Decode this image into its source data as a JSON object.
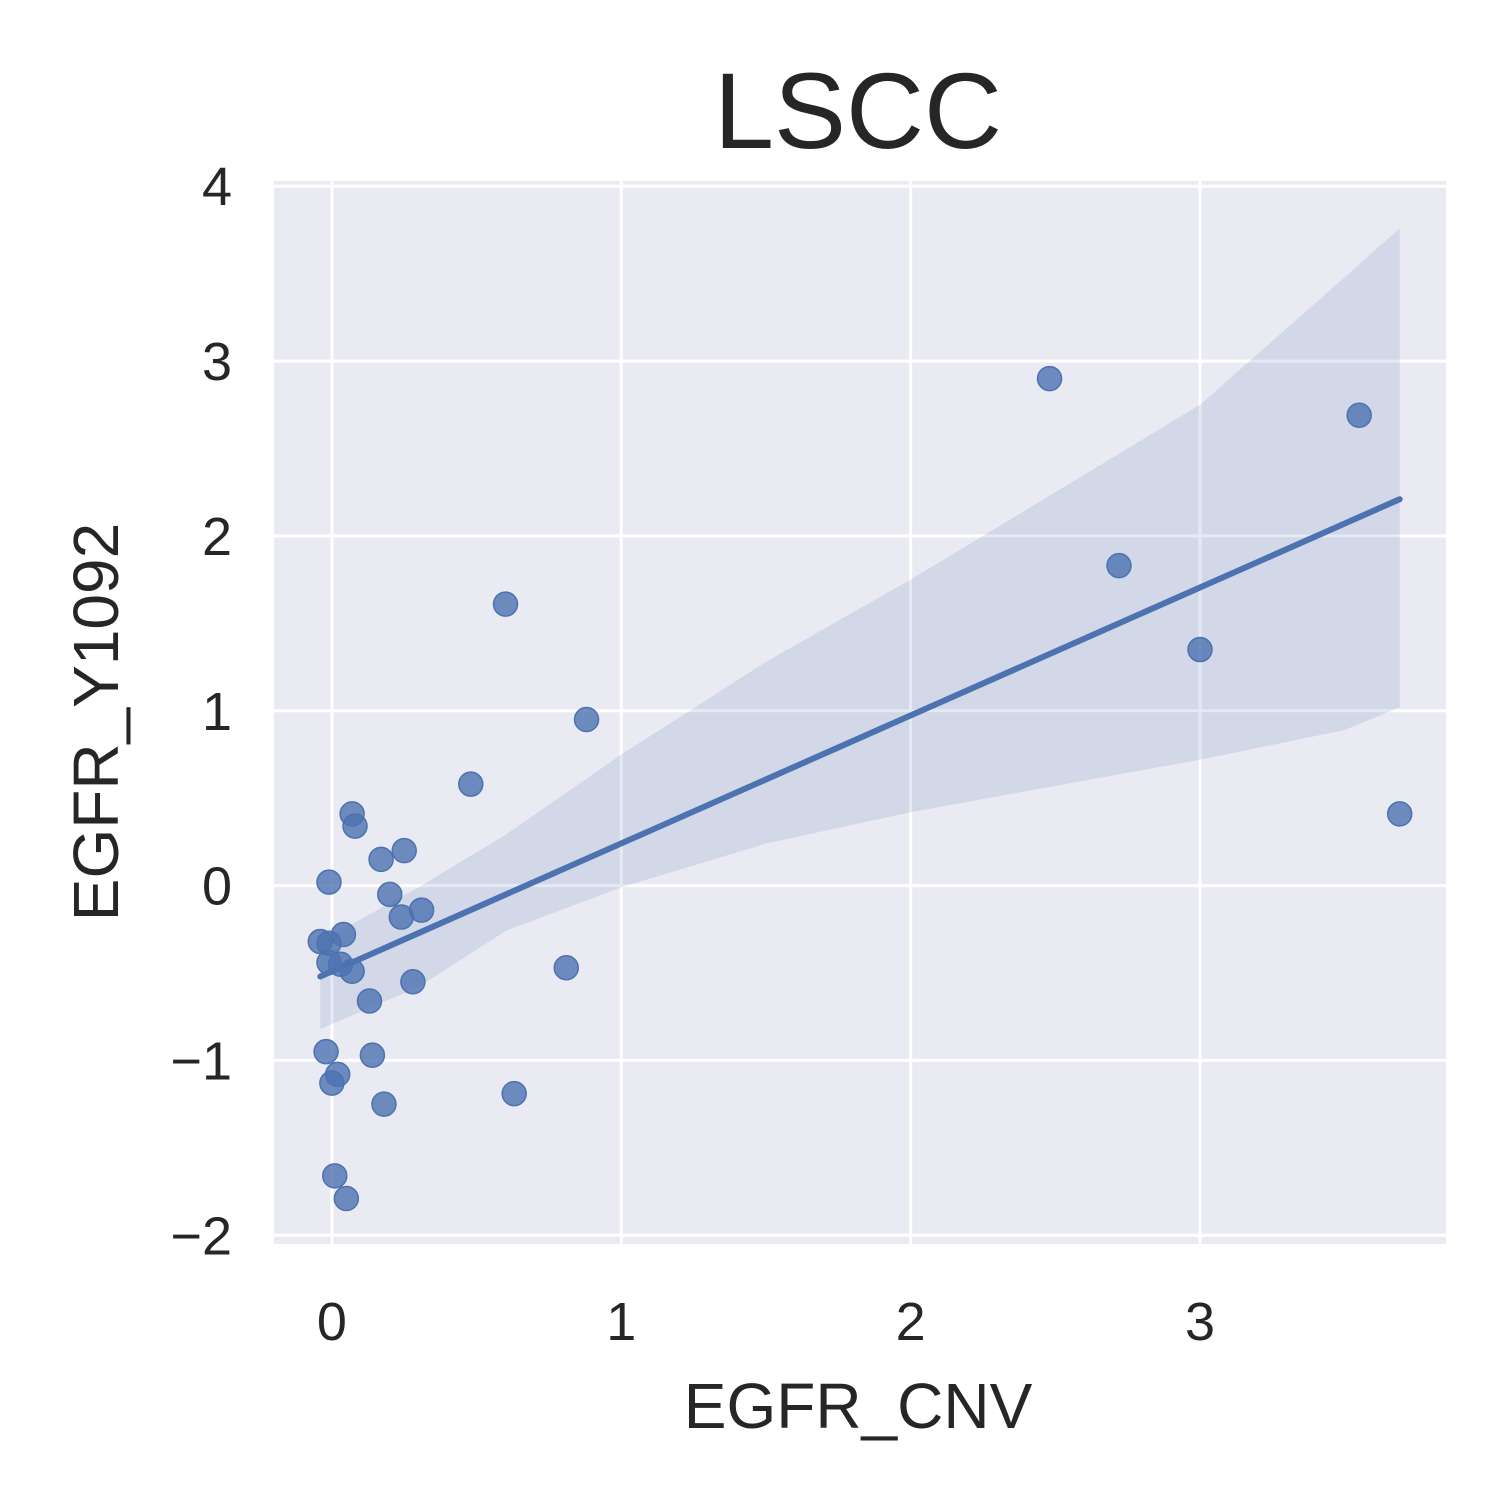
{
  "chart_data": {
    "type": "scatter",
    "title": "LSCC",
    "xlabel": "EGFR_CNV",
    "ylabel": "EGFR_Y1092",
    "xlim": [
      -0.2,
      3.85
    ],
    "ylim": [
      -2.05,
      4.03
    ],
    "xticks": [
      0,
      1,
      2,
      3
    ],
    "yticks": [
      -2,
      -1,
      0,
      1,
      2,
      3,
      4
    ],
    "xtick_labels": [
      "0",
      "1",
      "2",
      "3"
    ],
    "ytick_labels": [
      "−2",
      "−1",
      "0",
      "1",
      "2",
      "3",
      "4"
    ],
    "grid": true,
    "colors": {
      "background": "#eaeaf2",
      "grid": "#ffffff",
      "points": "#4c72b0",
      "band": "#4c72b0"
    },
    "points": [
      {
        "x": 2.48,
        "y": 2.9
      },
      {
        "x": 3.55,
        "y": 2.69
      },
      {
        "x": 2.72,
        "y": 1.83
      },
      {
        "x": 3.0,
        "y": 1.35
      },
      {
        "x": 3.69,
        "y": 0.41
      },
      {
        "x": 0.6,
        "y": 1.61
      },
      {
        "x": 0.88,
        "y": 0.95
      },
      {
        "x": 0.48,
        "y": 0.58
      },
      {
        "x": 0.07,
        "y": 0.41
      },
      {
        "x": 0.08,
        "y": 0.34
      },
      {
        "x": 0.25,
        "y": 0.2
      },
      {
        "x": 0.17,
        "y": 0.15
      },
      {
        "x": -0.01,
        "y": 0.02
      },
      {
        "x": 0.2,
        "y": -0.05
      },
      {
        "x": 0.31,
        "y": -0.14
      },
      {
        "x": 0.24,
        "y": -0.18
      },
      {
        "x": 0.04,
        "y": -0.28
      },
      {
        "x": -0.04,
        "y": -0.32
      },
      {
        "x": -0.01,
        "y": -0.33
      },
      {
        "x": -0.01,
        "y": -0.44
      },
      {
        "x": 0.03,
        "y": -0.45
      },
      {
        "x": 0.07,
        "y": -0.49
      },
      {
        "x": 0.81,
        "y": -0.47
      },
      {
        "x": 0.28,
        "y": -0.55
      },
      {
        "x": 0.13,
        "y": -0.66
      },
      {
        "x": -0.02,
        "y": -0.95
      },
      {
        "x": 0.14,
        "y": -0.97
      },
      {
        "x": 0.02,
        "y": -1.08
      },
      {
        "x": 0.0,
        "y": -1.13
      },
      {
        "x": 0.63,
        "y": -1.19
      },
      {
        "x": 0.18,
        "y": -1.25
      },
      {
        "x": 0.01,
        "y": -1.66
      },
      {
        "x": 0.05,
        "y": -1.79
      }
    ],
    "regression": {
      "x": [
        -0.04,
        3.69
      ],
      "y": [
        -0.52,
        2.21
      ]
    },
    "confidence_band": {
      "x": [
        -0.04,
        0.3,
        0.6,
        1.0,
        1.5,
        2.0,
        2.5,
        3.0,
        3.5,
        3.69
      ],
      "upper": [
        -0.32,
        -0.01,
        0.29,
        0.75,
        1.28,
        1.75,
        2.25,
        2.75,
        3.48,
        3.76
      ],
      "lower": [
        -0.82,
        -0.58,
        -0.26,
        -0.01,
        0.24,
        0.42,
        0.57,
        0.72,
        0.89,
        1.02
      ]
    }
  }
}
